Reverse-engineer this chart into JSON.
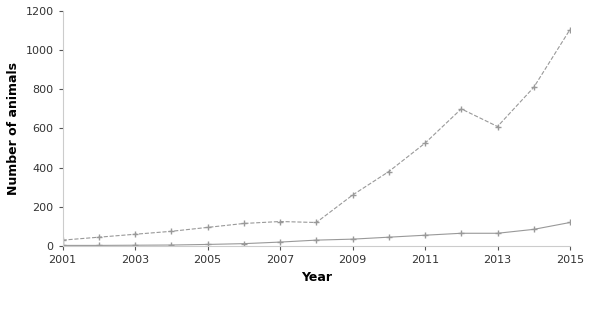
{
  "years": [
    2001,
    2002,
    2003,
    2004,
    2005,
    2006,
    2007,
    2008,
    2009,
    2010,
    2011,
    2012,
    2013,
    2014,
    2015
  ],
  "boars": [
    3,
    3,
    4,
    5,
    8,
    12,
    20,
    30,
    35,
    45,
    55,
    65,
    65,
    85,
    120
  ],
  "sows": [
    30,
    45,
    60,
    75,
    95,
    115,
    125,
    120,
    260,
    380,
    525,
    700,
    610,
    810,
    1105
  ],
  "xlabel": "Year",
  "ylabel": "Number of animals",
  "ylim": [
    0,
    1200
  ],
  "yticks": [
    0,
    200,
    400,
    600,
    800,
    1000,
    1200
  ],
  "xticks": [
    2001,
    2003,
    2005,
    2007,
    2009,
    2011,
    2013,
    2015
  ],
  "line_color": "#999999",
  "background_color": "#ffffff"
}
